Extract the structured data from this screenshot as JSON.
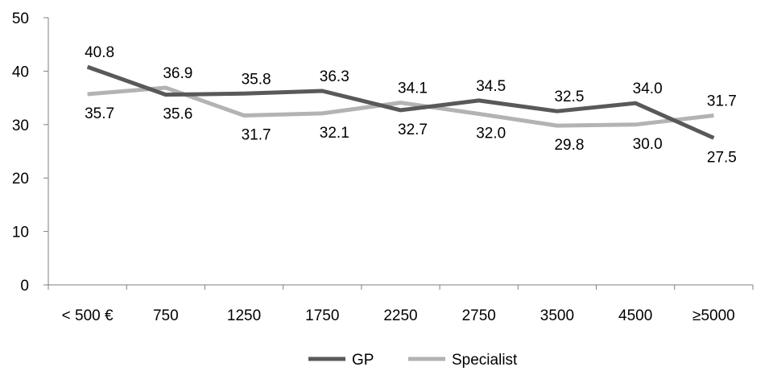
{
  "chart_data": {
    "type": "line",
    "title": "",
    "xlabel": "",
    "ylabel": "",
    "categories": [
      "< 500 €",
      "750",
      "1250",
      "1750",
      "2250",
      "2750",
      "3500",
      "4500",
      "≥5000"
    ],
    "ylim": [
      0,
      50
    ],
    "yticks": [
      0,
      10,
      20,
      30,
      40,
      50
    ],
    "grid": false,
    "legend_position": "bottom",
    "series": [
      {
        "name": "GP",
        "color": "#595959",
        "values": [
          40.8,
          35.6,
          35.8,
          36.3,
          32.7,
          34.5,
          32.5,
          34.0,
          27.5
        ]
      },
      {
        "name": "Specialist",
        "color": "#b3b3b3",
        "values": [
          35.7,
          36.9,
          31.7,
          32.1,
          34.1,
          32.0,
          29.8,
          30.0,
          31.7
        ]
      }
    ],
    "data_labels": [
      {
        "series": 0,
        "text": [
          "40.8",
          "35.6",
          "35.8",
          "36.3",
          "32.7",
          "34.5",
          "32.5",
          "34.0",
          "27.5"
        ]
      },
      {
        "series": 1,
        "text": [
          "35.7",
          "36.9",
          "31.7",
          "32.1",
          "34.1",
          "32.0",
          "29.8",
          "30.0",
          "31.7"
        ]
      }
    ]
  }
}
